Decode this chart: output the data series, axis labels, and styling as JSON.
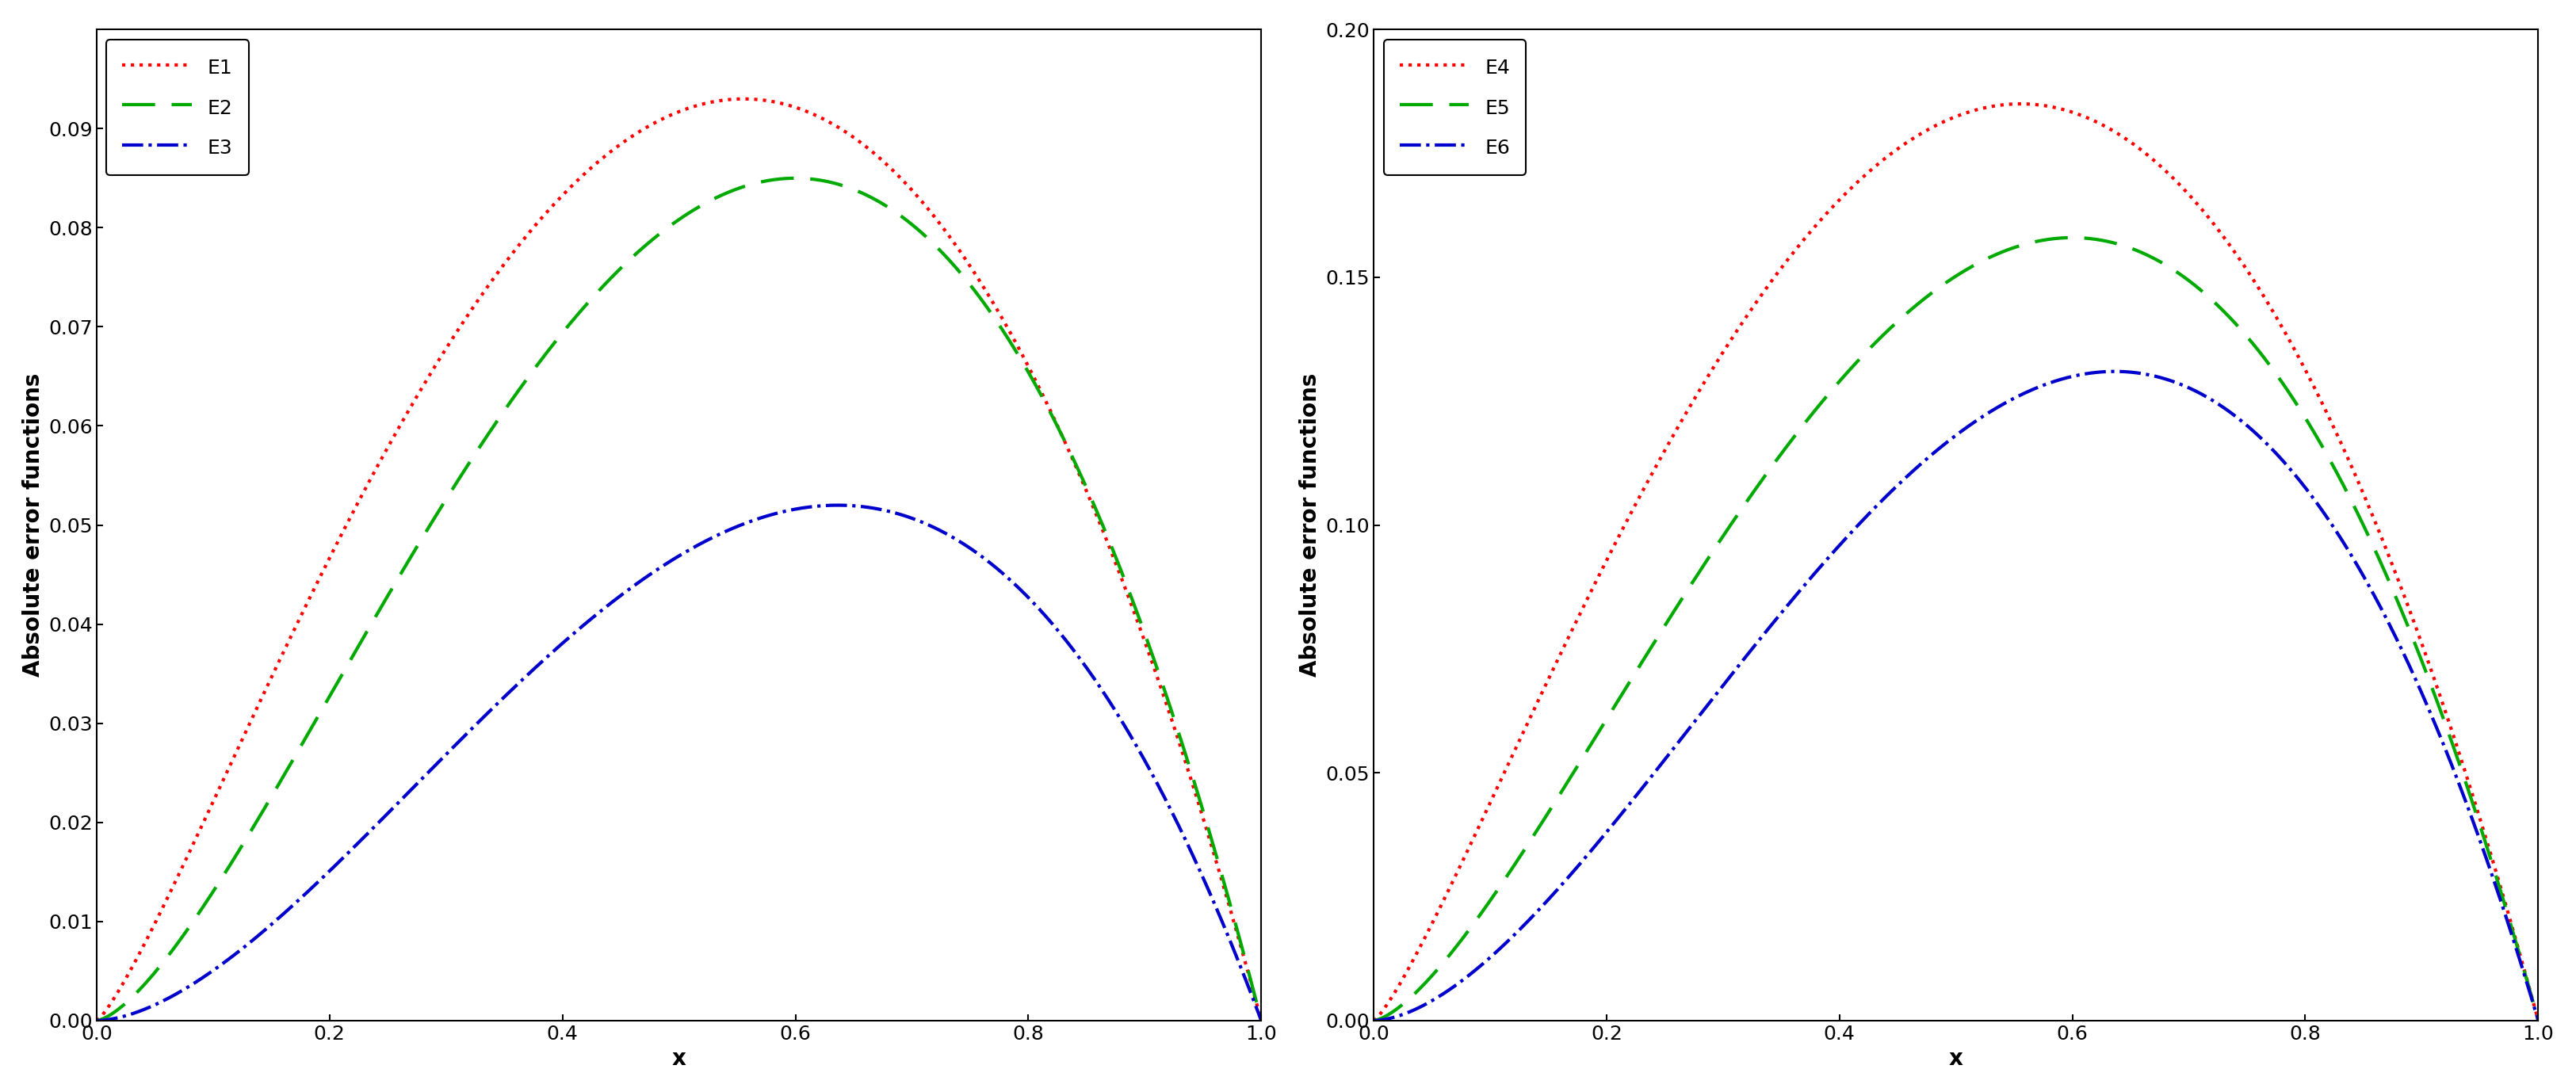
{
  "left_curves": {
    "E1": {
      "alpha": 1.25,
      "scale": 0.093,
      "color": "#ff0000",
      "linestyle": "dotted",
      "label": "E1",
      "linewidth": 3.0
    },
    "E2": {
      "alpha": 1.5,
      "scale": 0.085,
      "color": "#00aa00",
      "linestyle": "dashed",
      "label": "E2",
      "linewidth": 3.0
    },
    "E3": {
      "alpha": 1.75,
      "scale": 0.052,
      "color": "#0000cc",
      "linestyle": "dashdot",
      "label": "E3",
      "linewidth": 3.0
    }
  },
  "right_curves": {
    "E4": {
      "alpha": 1.25,
      "scale": 0.185,
      "color": "#ff0000",
      "linestyle": "dotted",
      "label": "E4",
      "linewidth": 3.0
    },
    "E5": {
      "alpha": 1.5,
      "scale": 0.158,
      "color": "#00aa00",
      "linestyle": "dashed",
      "label": "E5",
      "linewidth": 3.0
    },
    "E6": {
      "alpha": 1.75,
      "scale": 0.131,
      "color": "#0000cc",
      "linestyle": "dashdot",
      "label": "E6",
      "linewidth": 3.0
    }
  },
  "left_ylim": [
    0,
    0.1
  ],
  "right_ylim": [
    0,
    0.2
  ],
  "left_yticks": [
    0,
    0.01,
    0.02,
    0.03,
    0.04,
    0.05,
    0.06,
    0.07,
    0.08,
    0.09
  ],
  "right_yticks": [
    0,
    0.05,
    0.1,
    0.15,
    0.2
  ],
  "xlabel": "x",
  "ylabel": "Absolute error functions",
  "xlim": [
    0,
    1
  ],
  "xticks": [
    0,
    0.2,
    0.4,
    0.6,
    0.8,
    1
  ],
  "background_color": "#ffffff",
  "tick_fontsize": 18,
  "label_fontsize": 20,
  "legend_fontsize": 18
}
